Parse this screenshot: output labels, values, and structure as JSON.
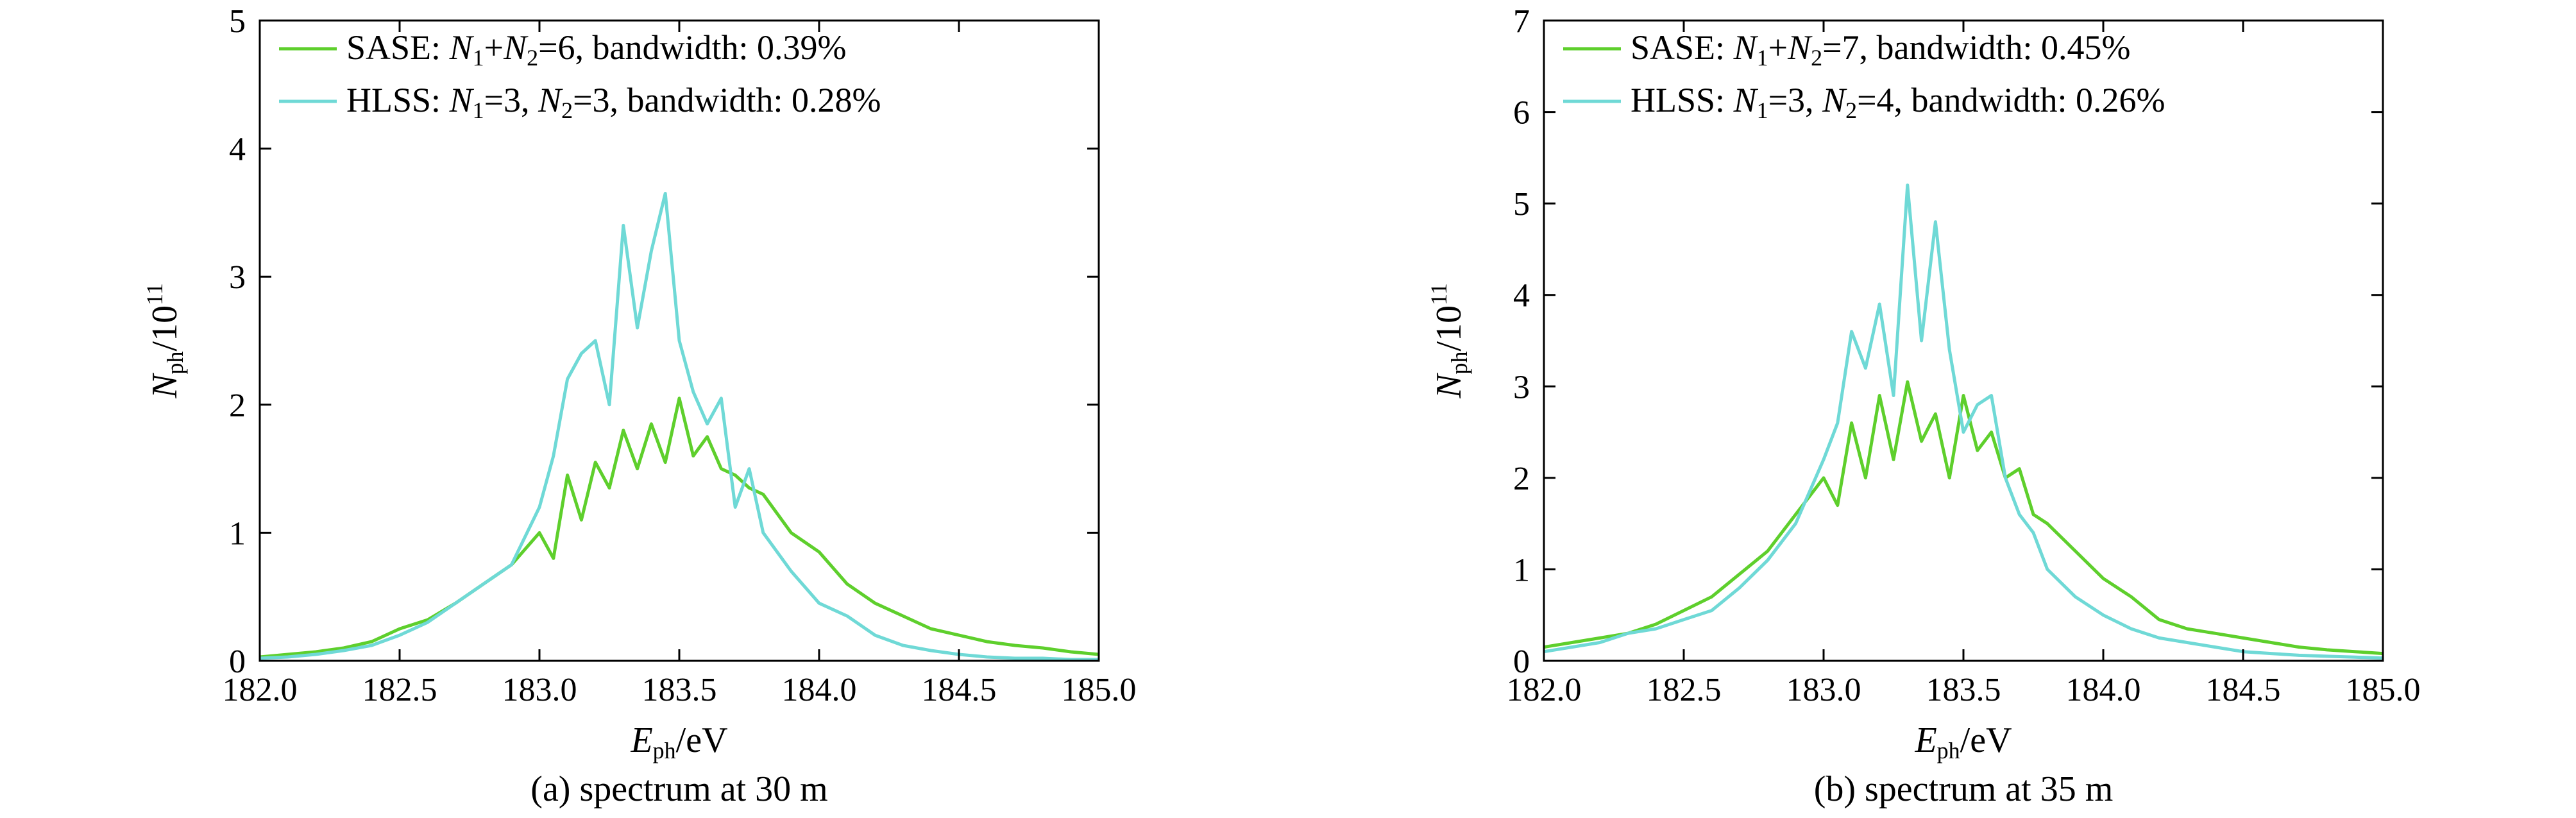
{
  "chart_data": [
    {
      "type": "line",
      "caption": "(a) spectrum at 30 m",
      "xlabel": {
        "main": "E",
        "sub": "ph",
        "rest": "/eV"
      },
      "ylabel": {
        "main": "N",
        "sub": "ph",
        "rest": "/10",
        "sup": "11"
      },
      "xlim": [
        182.0,
        185.0
      ],
      "ylim": [
        0,
        5
      ],
      "xticks": [
        "182.0",
        "182.5",
        "183.0",
        "183.5",
        "184.0",
        "184.5",
        "185.0"
      ],
      "yticks": [
        "0",
        "1",
        "2",
        "3",
        "4",
        "5"
      ],
      "legend_position": "top-left",
      "series": [
        {
          "name": "SASE: N1+N2=6, bandwidth: 0.39%",
          "legend_parts": [
            {
              "t": "SASE: "
            },
            {
              "t": "N",
              "i": true
            },
            {
              "t": "1",
              "sub": true
            },
            {
              "t": "+"
            },
            {
              "t": "N",
              "i": true
            },
            {
              "t": "2",
              "sub": true
            },
            {
              "t": "=6, bandwidth: 0.39%"
            }
          ],
          "color": "#5ecf2c",
          "x": [
            182.0,
            182.1,
            182.2,
            182.3,
            182.4,
            182.5,
            182.6,
            182.7,
            182.8,
            182.9,
            183.0,
            183.05,
            183.1,
            183.15,
            183.2,
            183.25,
            183.3,
            183.35,
            183.4,
            183.45,
            183.5,
            183.55,
            183.6,
            183.65,
            183.7,
            183.75,
            183.8,
            183.9,
            184.0,
            184.1,
            184.2,
            184.3,
            184.4,
            184.5,
            184.6,
            184.7,
            184.8,
            184.9,
            185.0
          ],
          "y": [
            0.03,
            0.05,
            0.07,
            0.1,
            0.15,
            0.25,
            0.32,
            0.45,
            0.6,
            0.75,
            1.0,
            0.8,
            1.45,
            1.1,
            1.55,
            1.35,
            1.8,
            1.5,
            1.85,
            1.55,
            2.05,
            1.6,
            1.75,
            1.5,
            1.45,
            1.35,
            1.3,
            1.0,
            0.85,
            0.6,
            0.45,
            0.35,
            0.25,
            0.2,
            0.15,
            0.12,
            0.1,
            0.07,
            0.05
          ]
        },
        {
          "name": "HLSS: N1=3, N2=3, bandwidth: 0.28%",
          "legend_parts": [
            {
              "t": "HLSS: "
            },
            {
              "t": "N",
              "i": true
            },
            {
              "t": "1",
              "sub": true
            },
            {
              "t": "=3, "
            },
            {
              "t": "N",
              "i": true
            },
            {
              "t": "2",
              "sub": true
            },
            {
              "t": "=3, bandwidth: 0.28%"
            }
          ],
          "color": "#6fd9d6",
          "x": [
            182.0,
            182.1,
            182.2,
            182.3,
            182.4,
            182.5,
            182.6,
            182.7,
            182.8,
            182.9,
            183.0,
            183.05,
            183.1,
            183.15,
            183.2,
            183.25,
            183.3,
            183.35,
            183.4,
            183.45,
            183.5,
            183.55,
            183.6,
            183.65,
            183.7,
            183.75,
            183.8,
            183.9,
            184.0,
            184.1,
            184.2,
            184.3,
            184.4,
            184.5,
            184.6,
            184.7,
            184.8,
            184.9,
            185.0
          ],
          "y": [
            0.02,
            0.03,
            0.05,
            0.08,
            0.12,
            0.2,
            0.3,
            0.45,
            0.6,
            0.75,
            1.2,
            1.6,
            2.2,
            2.4,
            2.5,
            2.0,
            3.4,
            2.6,
            3.2,
            3.65,
            2.5,
            2.1,
            1.85,
            2.05,
            1.2,
            1.5,
            1.0,
            0.7,
            0.45,
            0.35,
            0.2,
            0.12,
            0.08,
            0.05,
            0.03,
            0.02,
            0.02,
            0.01,
            0.01
          ]
        }
      ]
    },
    {
      "type": "line",
      "caption": "(b) spectrum at 35 m",
      "xlabel": {
        "main": "E",
        "sub": "ph",
        "rest": "/eV"
      },
      "ylabel": {
        "main": "N",
        "sub": "ph",
        "rest": "/10",
        "sup": "11"
      },
      "xlim": [
        182.0,
        185.0
      ],
      "ylim": [
        0,
        7
      ],
      "xticks": [
        "182.0",
        "182.5",
        "183.0",
        "183.5",
        "184.0",
        "184.5",
        "185.0"
      ],
      "yticks": [
        "0",
        "1",
        "2",
        "3",
        "4",
        "5",
        "6",
        "7"
      ],
      "legend_position": "top-left",
      "series": [
        {
          "name": "SASE: N1+N2=7, bandwidth: 0.45%",
          "legend_parts": [
            {
              "t": "SASE: "
            },
            {
              "t": "N",
              "i": true
            },
            {
              "t": "1",
              "sub": true
            },
            {
              "t": "+"
            },
            {
              "t": "N",
              "i": true
            },
            {
              "t": "2",
              "sub": true
            },
            {
              "t": "=7, bandwidth: 0.45%"
            }
          ],
          "color": "#5ecf2c",
          "x": [
            182.0,
            182.1,
            182.2,
            182.3,
            182.4,
            182.5,
            182.6,
            182.7,
            182.8,
            182.9,
            183.0,
            183.05,
            183.1,
            183.15,
            183.2,
            183.25,
            183.3,
            183.35,
            183.4,
            183.45,
            183.5,
            183.55,
            183.6,
            183.65,
            183.7,
            183.75,
            183.8,
            183.9,
            184.0,
            184.1,
            184.2,
            184.3,
            184.4,
            184.5,
            184.6,
            184.7,
            184.8,
            184.9,
            185.0
          ],
          "y": [
            0.15,
            0.2,
            0.25,
            0.3,
            0.4,
            0.55,
            0.7,
            0.95,
            1.2,
            1.6,
            2.0,
            1.7,
            2.6,
            2.0,
            2.9,
            2.2,
            3.05,
            2.4,
            2.7,
            2.0,
            2.9,
            2.3,
            2.5,
            2.0,
            2.1,
            1.6,
            1.5,
            1.2,
            0.9,
            0.7,
            0.45,
            0.35,
            0.3,
            0.25,
            0.2,
            0.15,
            0.12,
            0.1,
            0.08
          ]
        },
        {
          "name": "HLSS: N1=3, N2=4, bandwidth: 0.26%",
          "legend_parts": [
            {
              "t": "HLSS: "
            },
            {
              "t": "N",
              "i": true
            },
            {
              "t": "1",
              "sub": true
            },
            {
              "t": "=3, "
            },
            {
              "t": "N",
              "i": true
            },
            {
              "t": "2",
              "sub": true
            },
            {
              "t": "=4, bandwidth: 0.26%"
            }
          ],
          "color": "#6fd9d6",
          "x": [
            182.0,
            182.1,
            182.2,
            182.3,
            182.4,
            182.5,
            182.6,
            182.7,
            182.8,
            182.9,
            183.0,
            183.05,
            183.1,
            183.15,
            183.2,
            183.25,
            183.3,
            183.35,
            183.4,
            183.45,
            183.5,
            183.55,
            183.6,
            183.65,
            183.7,
            183.75,
            183.8,
            183.9,
            184.0,
            184.1,
            184.2,
            184.3,
            184.4,
            184.5,
            184.6,
            184.7,
            184.8,
            184.9,
            185.0
          ],
          "y": [
            0.1,
            0.15,
            0.2,
            0.3,
            0.35,
            0.45,
            0.55,
            0.8,
            1.1,
            1.5,
            2.2,
            2.6,
            3.6,
            3.2,
            3.9,
            2.9,
            5.2,
            3.5,
            4.8,
            3.4,
            2.5,
            2.8,
            2.9,
            2.0,
            1.6,
            1.4,
            1.0,
            0.7,
            0.5,
            0.35,
            0.25,
            0.2,
            0.15,
            0.1,
            0.08,
            0.06,
            0.05,
            0.04,
            0.03
          ]
        }
      ]
    }
  ]
}
